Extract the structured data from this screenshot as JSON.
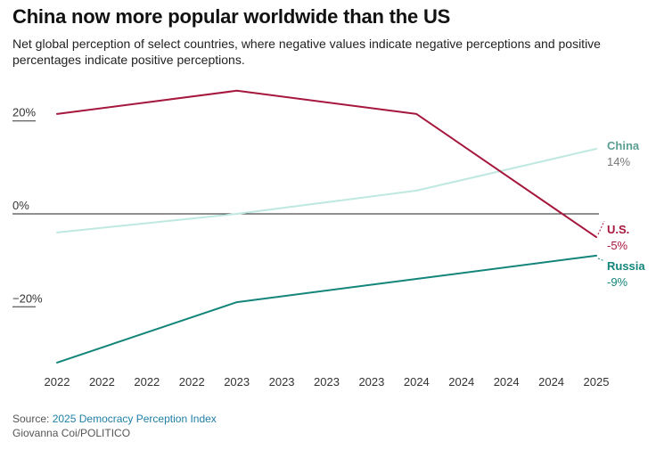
{
  "title": "China now more popular worldwide than the US",
  "subtitle": "Net global perception of select countries, where negative values indicate negative perceptions and positive percentages indicate positive perceptions.",
  "footer": {
    "source_label": "Source:",
    "source_link": "2025 Democracy Perception Index",
    "credit": "Giovanna Coi/POLITICO"
  },
  "chart_data": {
    "type": "line",
    "x": [
      "2022",
      "2022",
      "2022",
      "2022",
      "2023",
      "2023",
      "2023",
      "2023",
      "2024",
      "2024",
      "2024",
      "2024",
      "2025"
    ],
    "y_ticks": [
      {
        "value": 20,
        "label": "20%"
      },
      {
        "value": 0,
        "label": "0%"
      },
      {
        "value": -20,
        "label": "−20%"
      }
    ],
    "ylim": [
      -34,
      28
    ],
    "zero_line": true,
    "series": [
      {
        "name": "U.S.",
        "end_label": "-5%",
        "color": "#a6173d",
        "points": [
          [
            0,
            21.5
          ],
          [
            4,
            26.5
          ],
          [
            8,
            21.5
          ],
          [
            12,
            -5
          ]
        ]
      },
      {
        "name": "China",
        "end_label": "14%",
        "color": "#bfe8e0",
        "label_color": "#5a9e94",
        "value_color": "#777777",
        "points": [
          [
            0,
            -4
          ],
          [
            4,
            0
          ],
          [
            8,
            5
          ],
          [
            12,
            14
          ]
        ]
      },
      {
        "name": "Russia",
        "end_label": "-9%",
        "color": "#14857a",
        "points": [
          [
            0,
            -32
          ],
          [
            4,
            -19
          ],
          [
            8,
            -14
          ],
          [
            12,
            -9
          ]
        ]
      }
    ]
  }
}
